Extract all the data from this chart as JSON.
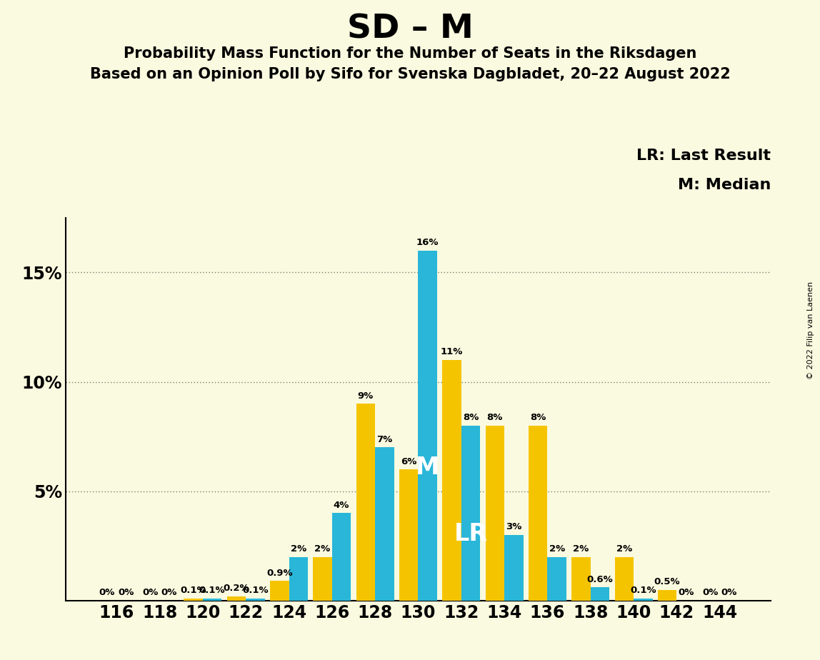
{
  "title": "SD – M",
  "subtitle1": "Probability Mass Function for the Number of Seats in the Riksdagen",
  "subtitle2": "Based on an Opinion Poll by Sifo for Svenska Dagbladet, 20–22 August 2022",
  "copyright": "© 2022 Filip van Laenen",
  "seats": [
    116,
    118,
    120,
    122,
    124,
    126,
    128,
    130,
    132,
    134,
    136,
    138,
    140,
    142,
    144
  ],
  "blue_values": [
    0.0,
    0.0,
    0.1,
    0.1,
    2.0,
    4.0,
    7.0,
    16.0,
    8.0,
    3.0,
    2.0,
    0.6,
    0.1,
    0.0,
    0.0
  ],
  "gold_values": [
    0.0,
    0.0,
    0.1,
    0.2,
    0.9,
    2.0,
    9.0,
    6.0,
    11.0,
    8.0,
    8.0,
    2.0,
    2.0,
    0.5,
    0.0
  ],
  "blue_color": "#29B6D8",
  "gold_color": "#F5C400",
  "background_color": "#FAFAE0",
  "lr_idx": 8,
  "median_idx": 7,
  "legend_lr": "LR: Last Result",
  "legend_m": "M: Median",
  "bar_width": 0.44,
  "ylim_max": 17.5,
  "ytick_vals": [
    0,
    5,
    10,
    15
  ],
  "ytick_labels": [
    "",
    "5%",
    "10%",
    "15%"
  ],
  "title_fontsize": 34,
  "subtitle_fontsize": 15,
  "axis_label_fontsize": 17,
  "bar_label_fontsize": 9.5,
  "legend_fontsize": 16,
  "copyright_fontsize": 8
}
